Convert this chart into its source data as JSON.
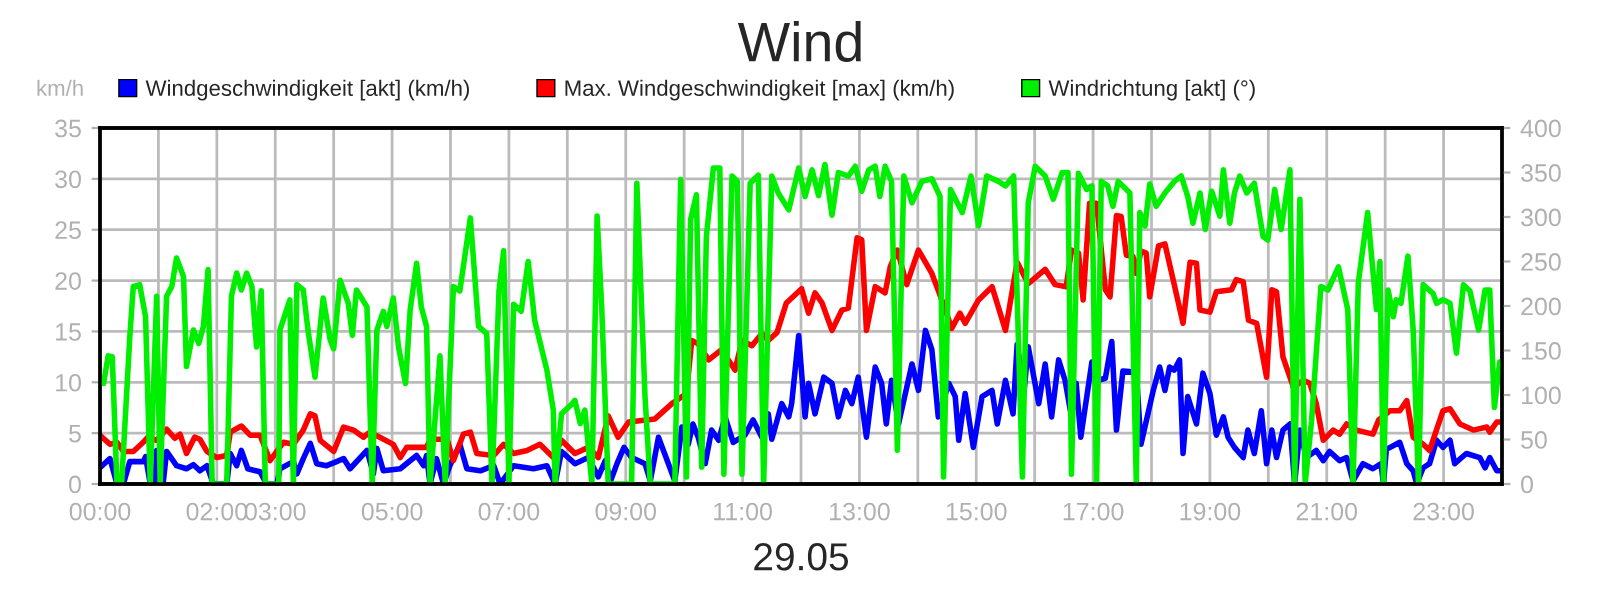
{
  "chart_data": {
    "type": "line",
    "title": "Wind",
    "xlabel": "29.05",
    "ylabel": "km/h",
    "xlim": [
      0,
      24
    ],
    "ylim": [
      0,
      35
    ],
    "y2lim": [
      0,
      400
    ],
    "xticks": [
      {
        "value": 0,
        "label": "00:00"
      },
      {
        "value": 1,
        "label": null
      },
      {
        "value": 2,
        "label": "02:00"
      },
      {
        "value": 3,
        "label": "03:00"
      },
      {
        "value": 4,
        "label": null
      },
      {
        "value": 5,
        "label": "05:00"
      },
      {
        "value": 6,
        "label": null
      },
      {
        "value": 7,
        "label": "07:00"
      },
      {
        "value": 8,
        "label": null
      },
      {
        "value": 9,
        "label": "09:00"
      },
      {
        "value": 10,
        "label": null
      },
      {
        "value": 11,
        "label": "11:00"
      },
      {
        "value": 12,
        "label": null
      },
      {
        "value": 13,
        "label": "13:00"
      },
      {
        "value": 14,
        "label": null
      },
      {
        "value": 15,
        "label": "15:00"
      },
      {
        "value": 16,
        "label": null
      },
      {
        "value": 17,
        "label": "17:00"
      },
      {
        "value": 18,
        "label": null
      },
      {
        "value": 19,
        "label": "19:00"
      },
      {
        "value": 20,
        "label": null
      },
      {
        "value": 21,
        "label": "21:00"
      },
      {
        "value": 22,
        "label": null
      },
      {
        "value": 23,
        "label": "23:00"
      }
    ],
    "yticks": [
      0,
      5,
      10,
      15,
      20,
      25,
      30,
      35
    ],
    "y2ticks": [
      0,
      50,
      100,
      150,
      200,
      250,
      300,
      350,
      400
    ],
    "grid": true,
    "legend": "top",
    "marker": "none",
    "line_style": "solid",
    "series": [
      {
        "name": "Windgeschwindigkeit [akt] (km/h)",
        "color": "#0000ff",
        "x": [
          0.0,
          0.17,
          0.29,
          0.4,
          0.51,
          0.74,
          0.78,
          0.86,
          0.94,
          0.97,
          1.08,
          1.14,
          1.31,
          1.48,
          1.6,
          1.71,
          1.83,
          1.94,
          2.17,
          2.23,
          2.34,
          2.42,
          2.53,
          2.74,
          2.85,
          3.03,
          3.08,
          3.31,
          3.37,
          3.48,
          3.6,
          3.71,
          3.88,
          4.05,
          4.17,
          4.28,
          4.57,
          4.68,
          4.74,
          4.85,
          5.14,
          5.42,
          5.54,
          5.59,
          5.65,
          5.76,
          5.88,
          5.99,
          6.16,
          6.28,
          6.51,
          6.74,
          6.85,
          7.08,
          7.42,
          7.65,
          7.79,
          7.9,
          8.13,
          8.36,
          8.53,
          8.65,
          8.74,
          8.85,
          8.97,
          9.1,
          9.33,
          9.42,
          9.56,
          9.73,
          9.84,
          9.96,
          10.07,
          10.15,
          10.24,
          10.36,
          10.47,
          10.59,
          10.7,
          10.84,
          11.04,
          11.18,
          11.33,
          11.44,
          11.5,
          11.67,
          11.79,
          11.84,
          11.96,
          12.07,
          12.13,
          12.24,
          12.39,
          12.53,
          12.64,
          12.76,
          12.87,
          12.98,
          13.12,
          13.27,
          13.38,
          13.46,
          13.55,
          13.67,
          13.9,
          14.01,
          14.13,
          14.24,
          14.35,
          14.53,
          14.64,
          14.7,
          14.81,
          14.95,
          15.1,
          15.27,
          15.36,
          15.5,
          15.63,
          15.7,
          15.82,
          15.89,
          16.07,
          16.18,
          16.29,
          16.41,
          16.52,
          16.63,
          16.71,
          16.79,
          16.98,
          17.09,
          17.21,
          17.32,
          17.4,
          17.51,
          17.74,
          17.82,
          18.03,
          18.14,
          18.23,
          18.31,
          18.39,
          18.48,
          18.54,
          18.62,
          18.77,
          18.88,
          19.0,
          19.11,
          19.23,
          19.31,
          19.42,
          19.57,
          19.65,
          19.76,
          19.88,
          19.97,
          20.06,
          20.14,
          20.25,
          20.37,
          20.45,
          20.54,
          20.65,
          20.82,
          20.94,
          21.05,
          21.22,
          21.34,
          21.45,
          21.62,
          21.79,
          21.93,
          21.97,
          22.02,
          22.25,
          22.37,
          22.48,
          22.54,
          22.65,
          22.76,
          22.88,
          22.99,
          23.11,
          23.19,
          23.39,
          23.62,
          23.71,
          23.79,
          23.91,
          23.96
        ],
        "values": [
          1.6,
          2.5,
          0,
          0,
          2.2,
          2.2,
          2.7,
          0,
          0,
          3.3,
          0,
          3.2,
          1.8,
          1.5,
          1.9,
          1.3,
          1.8,
          0,
          0,
          3.0,
          1.8,
          3.3,
          1.5,
          1.2,
          0,
          0,
          1.5,
          2.2,
          1.0,
          2.5,
          4.0,
          2.0,
          1.8,
          2.2,
          2.5,
          1.5,
          3.3,
          1.0,
          3.5,
          1.3,
          1.5,
          2.8,
          1.8,
          2.8,
          0,
          2.5,
          0,
          1.8,
          3.9,
          1.5,
          1.3,
          1.8,
          0,
          1.8,
          1.5,
          1.8,
          0,
          3.2,
          2.0,
          2.6,
          0.7,
          2.3,
          0.3,
          2.0,
          3.6,
          2.6,
          2.0,
          0.3,
          4.6,
          2.0,
          0.3,
          5.6,
          3.9,
          5.9,
          4.6,
          2.0,
          5.3,
          4.3,
          6.6,
          4.1,
          4.8,
          6.3,
          4.6,
          6.9,
          4.4,
          7.9,
          6.6,
          7.9,
          14.6,
          6.6,
          9.9,
          6.9,
          10.5,
          9.9,
          6.6,
          9.2,
          7.9,
          10.5,
          4.6,
          11.5,
          9.9,
          5.9,
          10.2,
          5.9,
          11.8,
          9.2,
          15.1,
          13.2,
          6.6,
          9.9,
          8.6,
          4.3,
          8.9,
          3.6,
          8.6,
          9.2,
          5.9,
          10.2,
          6.9,
          13.7,
          9.2,
          13.5,
          7.9,
          11.8,
          6.6,
          12.2,
          10.2,
          6.6,
          9.9,
          4.6,
          12.0,
          10.2,
          10.4,
          14.0,
          5.3,
          11.1,
          11.0,
          3.9,
          9.2,
          11.5,
          9.2,
          11.5,
          11.2,
          12.2,
          3.0,
          8.6,
          5.9,
          10.9,
          8.9,
          4.8,
          6.6,
          4.6,
          3.6,
          2.6,
          5.3,
          3.0,
          7.2,
          2.0,
          5.3,
          2.6,
          5.3,
          5.9,
          0,
          5.3,
          2.6,
          3.3,
          2.3,
          3.2,
          2.3,
          2.6,
          0.3,
          2.0,
          1.5,
          2.0,
          0,
          3.4,
          4.1,
          2.0,
          1.3,
          0,
          1.6,
          2.0,
          4.3,
          3.6,
          4.3,
          2.0,
          3.0,
          2.6,
          1.6,
          2.6,
          1.3,
          1.3
        ]
      },
      {
        "name": "Max. Windgeschwindigkeit [max] (km/h)",
        "color": "#ff0000",
        "x": [
          0.0,
          0.17,
          0.29,
          0.4,
          0.57,
          0.74,
          0.82,
          0.97,
          1.14,
          1.28,
          1.37,
          1.48,
          1.62,
          1.71,
          1.83,
          2.0,
          2.17,
          2.23,
          2.42,
          2.57,
          2.74,
          2.91,
          3.14,
          3.31,
          3.48,
          3.6,
          3.68,
          3.77,
          4.0,
          4.17,
          4.34,
          4.51,
          4.62,
          4.79,
          5.02,
          5.14,
          5.25,
          5.59,
          5.65,
          5.94,
          6.05,
          6.22,
          6.34,
          6.45,
          6.74,
          6.91,
          7.08,
          7.31,
          7.53,
          7.76,
          7.9,
          8.13,
          8.36,
          8.53,
          8.7,
          8.87,
          9.05,
          9.5,
          9.79,
          10.04,
          10.13,
          10.24,
          10.42,
          10.64,
          10.87,
          10.99,
          11.16,
          11.33,
          11.44,
          11.59,
          11.75,
          12.01,
          12.13,
          12.24,
          12.36,
          12.53,
          12.7,
          12.81,
          12.96,
          13.04,
          13.12,
          13.27,
          13.44,
          13.53,
          13.65,
          13.81,
          14.01,
          14.24,
          14.41,
          14.58,
          14.72,
          14.81,
          15.04,
          15.27,
          15.5,
          15.7,
          15.89,
          16.18,
          16.35,
          16.54,
          16.63,
          16.75,
          16.83,
          16.94,
          17.06,
          17.21,
          17.29,
          17.4,
          17.48,
          17.57,
          17.68,
          17.74,
          17.82,
          17.91,
          17.97,
          18.12,
          18.23,
          18.37,
          18.54,
          18.66,
          18.77,
          18.83,
          19.0,
          19.11,
          19.37,
          19.45,
          19.57,
          19.66,
          19.8,
          19.97,
          20.06,
          20.14,
          20.25,
          20.43,
          20.6,
          20.71,
          20.82,
          20.94,
          21.11,
          21.22,
          21.34,
          21.51,
          21.79,
          21.89,
          22.08,
          22.25,
          22.37,
          22.48,
          22.65,
          22.76,
          22.99,
          23.11,
          23.28,
          23.51,
          23.74,
          23.79,
          23.91,
          23.96
        ],
        "values": [
          4.8,
          3.9,
          4.1,
          3.2,
          3.2,
          4.1,
          4.6,
          4.3,
          5.4,
          4.5,
          4.9,
          3.0,
          4.6,
          4.4,
          3.2,
          2.6,
          2.8,
          5.1,
          5.7,
          4.8,
          4.8,
          2.3,
          4.1,
          3.9,
          5.3,
          6.9,
          6.7,
          4.3,
          3.2,
          5.6,
          5.3,
          4.6,
          5.1,
          4.6,
          3.9,
          2.6,
          3.6,
          3.6,
          4.4,
          4.4,
          2.3,
          4.9,
          5.1,
          3.0,
          2.8,
          3.9,
          3.0,
          3.3,
          3.9,
          2.6,
          4.3,
          3.0,
          3.6,
          2.6,
          6.7,
          4.6,
          6.1,
          6.4,
          7.9,
          8.9,
          14.1,
          13.8,
          12.2,
          13.2,
          11.2,
          14.1,
          13.6,
          14.8,
          14.1,
          14.9,
          17.8,
          19.2,
          16.8,
          18.8,
          17.8,
          15.1,
          17.1,
          17.3,
          24.2,
          24.0,
          15.1,
          19.4,
          18.8,
          21.4,
          23.0,
          19.6,
          23.0,
          20.7,
          18.1,
          15.3,
          16.8,
          15.8,
          18.1,
          19.4,
          15.1,
          21.8,
          19.7,
          21.1,
          19.6,
          19.4,
          23.0,
          22.7,
          18.1,
          27.6,
          27.6,
          19.1,
          18.4,
          26.4,
          26.3,
          22.5,
          22.4,
          20.7,
          22.9,
          22.7,
          18.4,
          23.4,
          23.6,
          20.1,
          15.8,
          21.8,
          21.7,
          17.1,
          16.9,
          18.9,
          19.1,
          20.1,
          19.9,
          16.1,
          15.8,
          10.5,
          19.1,
          18.9,
          12.5,
          9.5,
          10.2,
          9.9,
          7.9,
          4.3,
          5.3,
          4.9,
          5.9,
          5.3,
          4.9,
          6.3,
          7.2,
          7.2,
          8.2,
          4.6,
          3.9,
          3.3,
          7.2,
          7.4,
          5.9,
          5.3,
          5.6,
          5.1,
          6.1,
          6.1
        ]
      },
      {
        "name": "Windrichtung [akt] (°)",
        "color": "#00ee00",
        "axis": "y2",
        "x": [
          0.06,
          0.14,
          0.21,
          0.29,
          0.37,
          0.51,
          0.57,
          0.68,
          0.78,
          0.86,
          0.97,
          1.03,
          1.14,
          1.23,
          1.31,
          1.43,
          1.48,
          1.6,
          1.69,
          1.77,
          1.85,
          1.92,
          2.17,
          2.25,
          2.34,
          2.42,
          2.51,
          2.6,
          2.68,
          2.76,
          2.83,
          3.06,
          3.08,
          3.25,
          3.31,
          3.37,
          3.48,
          3.56,
          3.68,
          3.82,
          3.94,
          4.0,
          4.11,
          4.25,
          4.32,
          4.39,
          4.57,
          4.66,
          4.74,
          4.85,
          4.91,
          5.02,
          5.11,
          5.23,
          5.31,
          5.42,
          5.5,
          5.59,
          5.65,
          5.82,
          5.91,
          6.05,
          6.16,
          6.34,
          6.48,
          6.62,
          6.71,
          6.83,
          6.91,
          7.0,
          7.08,
          7.21,
          7.33,
          7.44,
          7.65,
          7.76,
          7.79,
          7.9,
          8.08,
          8.13,
          8.22,
          8.3,
          8.42,
          8.51,
          8.59,
          8.7,
          8.93,
          9.1,
          9.19,
          9.33,
          9.42,
          9.67,
          9.84,
          9.94,
          10.04,
          10.11,
          10.21,
          10.3,
          10.38,
          10.5,
          10.61,
          10.68,
          10.82,
          10.91,
          10.99,
          11.13,
          11.27,
          11.36,
          11.5,
          11.61,
          11.79,
          11.96,
          12.07,
          12.19,
          12.3,
          12.41,
          12.53,
          12.64,
          12.81,
          12.93,
          13.04,
          13.16,
          13.27,
          13.35,
          13.44,
          13.55,
          13.65,
          13.76,
          13.9,
          14.07,
          14.24,
          14.38,
          14.44,
          14.56,
          14.76,
          14.91,
          15.04,
          15.18,
          15.38,
          15.5,
          15.64,
          15.79,
          15.89,
          16.01,
          16.18,
          16.32,
          16.47,
          16.57,
          16.63,
          16.75,
          16.89,
          16.98,
          17.06,
          17.14,
          17.25,
          17.34,
          17.43,
          17.63,
          17.74,
          17.8,
          17.89,
          17.97,
          18.08,
          18.23,
          18.39,
          18.51,
          18.62,
          18.71,
          18.83,
          18.92,
          19.03,
          19.17,
          19.23,
          19.34,
          19.42,
          19.51,
          19.63,
          19.76,
          19.91,
          19.99,
          20.11,
          20.22,
          20.37,
          20.45,
          20.54,
          20.63,
          20.74,
          20.9,
          21.02,
          21.2,
          21.36,
          21.45,
          21.54,
          21.7,
          21.85,
          21.91,
          21.97,
          22.05,
          22.14,
          22.19,
          22.27,
          22.39,
          22.48,
          22.57,
          22.65,
          22.82,
          22.88,
          22.99,
          23.11,
          23.22,
          23.34,
          23.45,
          23.6,
          23.71,
          23.79,
          23.87,
          23.96
        ],
        "values": [
          113,
          144,
          143,
          0,
          0,
          165,
          222,
          224,
          188,
          0,
          211,
          0,
          211,
          222,
          254,
          233,
          132,
          173,
          158,
          177,
          241,
          0,
          0,
          211,
          237,
          218,
          237,
          222,
          154,
          217,
          0,
          0,
          173,
          207,
          0,
          224,
          218,
          173,
          120,
          209,
          162,
          152,
          229,
          203,
          167,
          218,
          199,
          0,
          173,
          194,
          177,
          209,
          154,
          113,
          196,
          248,
          199,
          177,
          0,
          144,
          0,
          222,
          217,
          299,
          177,
          169,
          0,
          217,
          262,
          0,
          202,
          194,
          250,
          184,
          128,
          83,
          0,
          79,
          90,
          94,
          68,
          83,
          0,
          301,
          196,
          0,
          0,
          0,
          338,
          98,
          0,
          0,
          0,
          342,
          8,
          297,
          325,
          19,
          278,
          355,
          355,
          11,
          346,
          340,
          11,
          338,
          347,
          0,
          346,
          327,
          308,
          355,
          323,
          353,
          324,
          359,
          302,
          350,
          346,
          357,
          329,
          353,
          357,
          323,
          357,
          340,
          38,
          346,
          316,
          340,
          343,
          323,
          8,
          331,
          305,
          346,
          290,
          346,
          340,
          335,
          346,
          8,
          316,
          357,
          346,
          320,
          350,
          350,
          11,
          349,
          331,
          335,
          0,
          340,
          335,
          312,
          340,
          327,
          0,
          305,
          290,
          337,
          312,
          327,
          340,
          346,
          323,
          293,
          327,
          286,
          329,
          301,
          353,
          293,
          327,
          346,
          327,
          338,
          278,
          274,
          331,
          286,
          353,
          0,
          320,
          0,
          71,
          222,
          218,
          244,
          196,
          0,
          226,
          305,
          196,
          250,
          0,
          218,
          188,
          207,
          203,
          256,
          173,
          0,
          224,
          214,
          203,
          207,
          203,
          147,
          224,
          217,
          173,
          218,
          218,
          86,
          137
        ]
      }
    ]
  }
}
